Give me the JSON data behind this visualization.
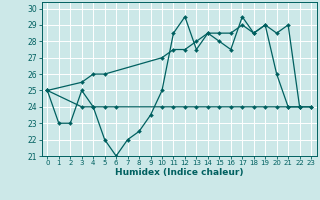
{
  "xlabel": "Humidex (Indice chaleur)",
  "bg_color": "#cce8e8",
  "grid_color": "#ffffff",
  "line_color": "#006060",
  "xlim": [
    -0.5,
    23.5
  ],
  "ylim": [
    21,
    30.4
  ],
  "yticks": [
    21,
    22,
    23,
    24,
    25,
    26,
    27,
    28,
    29,
    30
  ],
  "xticks": [
    0,
    1,
    2,
    3,
    4,
    5,
    6,
    7,
    8,
    9,
    10,
    11,
    12,
    13,
    14,
    15,
    16,
    17,
    18,
    19,
    20,
    21,
    22,
    23
  ],
  "line1_x": [
    0,
    1,
    2,
    3,
    4,
    5,
    6,
    7,
    8,
    9,
    10,
    11,
    12,
    13,
    14,
    15,
    16,
    17,
    18,
    19,
    20,
    21,
    22,
    23
  ],
  "line1_y": [
    25,
    23,
    23,
    25,
    24,
    22,
    21,
    22,
    22.5,
    23.5,
    25,
    28.5,
    29.5,
    27.5,
    28.5,
    28,
    27.5,
    29.5,
    28.5,
    29,
    26,
    24,
    24,
    24
  ],
  "line2_x": [
    0,
    3,
    4,
    5,
    10,
    11,
    12,
    13,
    14,
    15,
    16,
    17,
    18,
    19,
    20,
    21,
    22
  ],
  "line2_y": [
    25,
    25.5,
    26,
    26,
    27,
    27.5,
    27.5,
    28,
    28.5,
    28.5,
    28.5,
    29,
    28.5,
    29,
    28.5,
    29,
    24
  ],
  "line3_x": [
    0,
    3,
    4,
    5,
    6,
    10,
    11,
    12,
    13,
    14,
    15,
    16,
    17,
    18,
    19,
    20,
    21,
    22,
    23
  ],
  "line3_y": [
    25,
    24,
    24,
    24,
    24,
    24,
    24,
    24,
    24,
    24,
    24,
    24,
    24,
    24,
    24,
    24,
    24,
    24,
    24
  ]
}
